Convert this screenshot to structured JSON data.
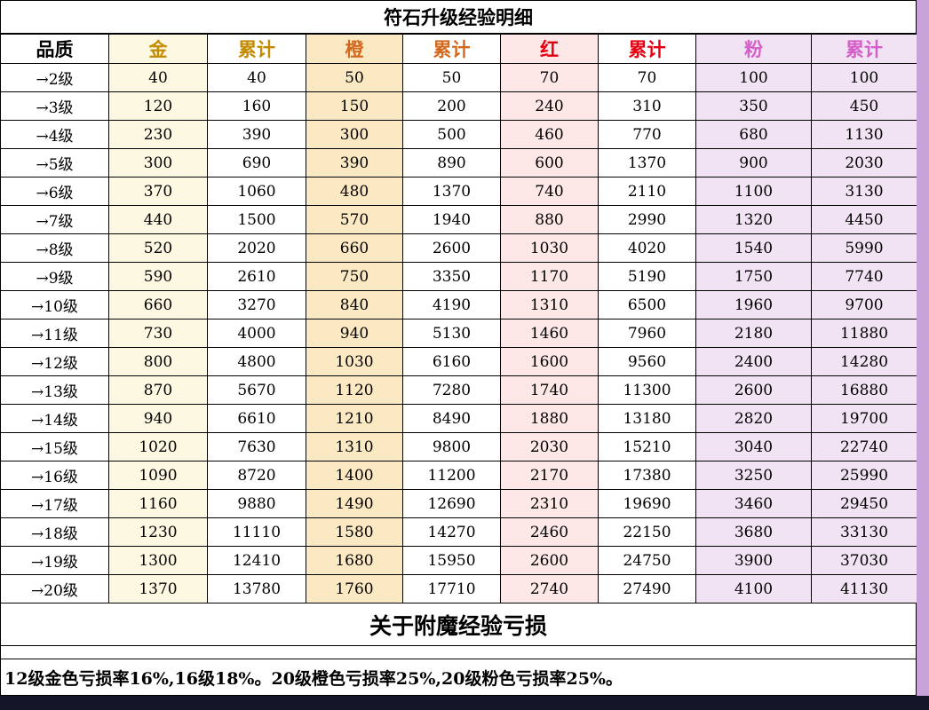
{
  "chart_data": {
    "type": "table",
    "title": "符石升级经验明细",
    "columns": [
      "品质",
      "金",
      "累计",
      "橙",
      "累计",
      "红",
      "累计",
      "粉",
      "累计"
    ],
    "rows": [
      {
        "level": "→2级",
        "values": [
          40,
          40,
          50,
          50,
          70,
          70,
          100,
          100
        ]
      },
      {
        "level": "→3级",
        "values": [
          120,
          160,
          150,
          200,
          240,
          310,
          350,
          450
        ]
      },
      {
        "level": "→4级",
        "values": [
          230,
          390,
          300,
          500,
          460,
          770,
          680,
          1130
        ]
      },
      {
        "level": "→5级",
        "values": [
          300,
          690,
          390,
          890,
          600,
          1370,
          900,
          2030
        ]
      },
      {
        "level": "→6级",
        "values": [
          370,
          1060,
          480,
          1370,
          740,
          2110,
          1100,
          3130
        ]
      },
      {
        "level": "→7级",
        "values": [
          440,
          1500,
          570,
          1940,
          880,
          2990,
          1320,
          4450
        ]
      },
      {
        "level": "→8级",
        "values": [
          520,
          2020,
          660,
          2600,
          1030,
          4020,
          1540,
          5990
        ]
      },
      {
        "level": "→9级",
        "values": [
          590,
          2610,
          750,
          3350,
          1170,
          5190,
          1750,
          7740
        ]
      },
      {
        "level": "→10级",
        "values": [
          660,
          3270,
          840,
          4190,
          1310,
          6500,
          1960,
          9700
        ]
      },
      {
        "level": "→11级",
        "values": [
          730,
          4000,
          940,
          5130,
          1460,
          7960,
          2180,
          11880
        ]
      },
      {
        "level": "→12级",
        "values": [
          800,
          4800,
          1030,
          6160,
          1600,
          9560,
          2400,
          14280
        ]
      },
      {
        "level": "→13级",
        "values": [
          870,
          5670,
          1120,
          7280,
          1740,
          11300,
          2600,
          16880
        ]
      },
      {
        "level": "→14级",
        "values": [
          940,
          6610,
          1210,
          8490,
          1880,
          13180,
          2820,
          19700
        ]
      },
      {
        "level": "→15级",
        "values": [
          1020,
          7630,
          1310,
          9800,
          2030,
          15210,
          3040,
          22740
        ]
      },
      {
        "level": "→16级",
        "values": [
          1090,
          8720,
          1400,
          11200,
          2170,
          17380,
          3250,
          25990
        ]
      },
      {
        "level": "→17级",
        "values": [
          1160,
          9880,
          1490,
          12690,
          2310,
          19690,
          3460,
          29450
        ]
      },
      {
        "level": "→18级",
        "values": [
          1230,
          11110,
          1580,
          14270,
          2460,
          22150,
          3680,
          33130
        ]
      },
      {
        "level": "→19级",
        "values": [
          1300,
          12410,
          1680,
          15950,
          2600,
          24750,
          3900,
          37030
        ]
      },
      {
        "level": "→20级",
        "values": [
          1370,
          13780,
          1760,
          17710,
          2740,
          27490,
          4100,
          41130
        ]
      }
    ]
  },
  "columns": [
    {
      "label": "品质",
      "text_color": "#000000",
      "bg": "#ffffff"
    },
    {
      "label": "金",
      "text_color": "#c28b00",
      "bg": "#fdf8e2"
    },
    {
      "label": "累计",
      "text_color": "#c28b00",
      "bg": "#ffffff"
    },
    {
      "label": "橙",
      "text_color": "#d2691e",
      "bg": "#fbe9c3"
    },
    {
      "label": "累计",
      "text_color": "#d2691e",
      "bg": "#ffffff"
    },
    {
      "label": "红",
      "text_color": "#e60012",
      "bg": "#fde7e7"
    },
    {
      "label": "累计",
      "text_color": "#e60012",
      "bg": "#ffffff"
    },
    {
      "label": "粉",
      "text_color": "#d45fc8",
      "bg": "#f1e3f3"
    },
    {
      "label": "累计",
      "text_color": "#d45fc8",
      "bg": "#f1e3f3"
    }
  ],
  "footer": {
    "title": "关于附魔经验亏损",
    "note": "12级金色亏损率16%,16级18%。20级橙色亏损率25%,20级粉色亏损率25%。"
  },
  "colors": {
    "side_strip": "#c7a3da",
    "bottom_bar": "#15152a",
    "border": "#000000"
  }
}
